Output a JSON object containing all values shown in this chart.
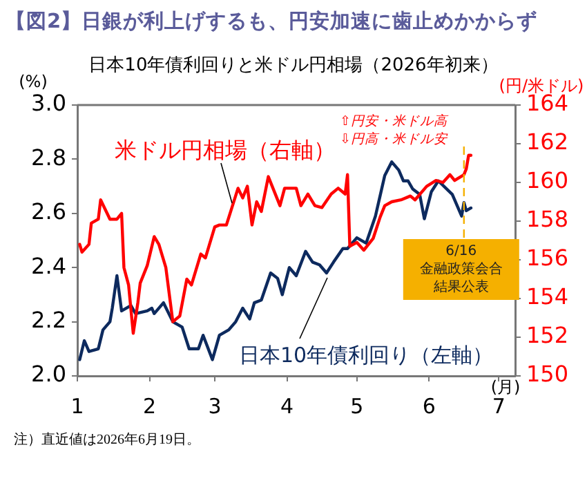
{
  "chart_data": {
    "type": "line",
    "title": "【図2】日銀が利上げするも、円安加速に歯止めかからず",
    "subtitle": "日本10年債利回りと米ドル円相場（2026年初来）",
    "xlabel": "(月)",
    "ylabel": "(%)",
    "y2label": "(円/米ドル)",
    "xlim": [
      "2026-01-01",
      "2026-07-08"
    ],
    "xticks": [
      {
        "value": "2026-01-01",
        "label": "1"
      },
      {
        "value": "2026-02-01",
        "label": "2"
      },
      {
        "value": "2026-03-01",
        "label": "3"
      },
      {
        "value": "2026-04-01",
        "label": "4"
      },
      {
        "value": "2026-05-01",
        "label": "5"
      },
      {
        "value": "2026-06-01",
        "label": "6"
      },
      {
        "value": "2026-07-01",
        "label": "7"
      }
    ],
    "ylim": [
      2.0,
      3.0
    ],
    "yticks": [
      {
        "value": 2.0,
        "label": "2.0"
      },
      {
        "value": 2.2,
        "label": "2.2"
      },
      {
        "value": 2.4,
        "label": "2.4"
      },
      {
        "value": 2.6,
        "label": "2.6"
      },
      {
        "value": 2.8,
        "label": "2.8"
      },
      {
        "value": 3.0,
        "label": "3.0"
      }
    ],
    "y2lim": [
      150,
      164
    ],
    "y2ticks": [
      150,
      152,
      154,
      156,
      158,
      160,
      162,
      164
    ],
    "grid": false,
    "legend": false,
    "marker": "none",
    "line_style": "solid",
    "series": [
      {
        "name": "米ドル円相場（右軸）",
        "color": "#ff0000",
        "axis": "y2",
        "x": [
          "2026-01-02",
          "2026-01-03",
          "2026-01-06",
          "2026-01-07",
          "2026-01-10",
          "2026-01-11",
          "2026-01-13",
          "2026-01-15",
          "2026-01-18",
          "2026-01-20",
          "2026-01-21",
          "2026-01-23",
          "2026-01-25",
          "2026-01-27",
          "2026-01-28",
          "2026-01-31",
          "2026-02-03",
          "2026-02-05",
          "2026-02-08",
          "2026-02-11",
          "2026-02-14",
          "2026-02-17",
          "2026-02-19",
          "2026-02-23",
          "2026-02-25",
          "2026-03-01",
          "2026-03-03",
          "2026-03-06",
          "2026-03-11",
          "2026-03-13",
          "2026-03-15",
          "2026-03-17",
          "2026-03-19",
          "2026-03-21",
          "2026-03-24",
          "2026-03-29",
          "2026-03-31",
          "2026-04-05",
          "2026-04-07",
          "2026-04-10",
          "2026-04-13",
          "2026-04-16",
          "2026-04-20",
          "2026-04-23",
          "2026-04-26",
          "2026-04-27",
          "2026-04-28",
          "2026-05-01",
          "2026-05-04",
          "2026-05-08",
          "2026-05-11",
          "2026-05-13",
          "2026-05-16",
          "2026-05-20",
          "2026-05-24",
          "2026-05-26",
          "2026-05-31",
          "2026-06-04",
          "2026-06-07",
          "2026-06-10",
          "2026-06-12",
          "2026-06-16",
          "2026-06-17",
          "2026-06-18",
          "2026-06-19"
        ],
        "values": [
          156.8,
          156.4,
          156.8,
          157.9,
          158.1,
          159.1,
          158.6,
          158.1,
          158.1,
          158.4,
          155.6,
          154.7,
          152.2,
          153.8,
          154.8,
          155.7,
          157.2,
          156.8,
          155.6,
          152.8,
          153.1,
          155.0,
          154.7,
          156.3,
          156.1,
          157.7,
          157.8,
          157.8,
          159.7,
          159.2,
          159.8,
          157.8,
          159.0,
          158.5,
          160.3,
          158.8,
          159.7,
          159.7,
          158.8,
          159.4,
          158.8,
          158.7,
          159.4,
          159.7,
          159.4,
          160.4,
          156.7,
          156.9,
          156.5,
          157.1,
          158.2,
          158.8,
          159.0,
          159.1,
          159.3,
          159.1,
          159.8,
          160.1,
          160.0,
          160.4,
          160.1,
          160.4,
          160.7,
          161.4,
          161.4
        ]
      },
      {
        "name": "日本10年債利回り（左軸）",
        "color": "#0d2a5e",
        "axis": "y",
        "x": [
          "2026-01-02",
          "2026-01-04",
          "2026-01-06",
          "2026-01-10",
          "2026-01-12",
          "2026-01-15",
          "2026-01-16",
          "2026-01-18",
          "2026-01-20",
          "2026-01-24",
          "2026-01-26",
          "2026-01-31",
          "2026-02-02",
          "2026-02-03",
          "2026-02-07",
          "2026-02-11",
          "2026-02-15",
          "2026-02-18",
          "2026-02-22",
          "2026-02-24",
          "2026-02-28",
          "2026-03-03",
          "2026-03-07",
          "2026-03-10",
          "2026-03-13",
          "2026-03-16",
          "2026-03-18",
          "2026-03-21",
          "2026-03-25",
          "2026-03-28",
          "2026-03-30",
          "2026-04-02",
          "2026-04-05",
          "2026-04-09",
          "2026-04-12",
          "2026-04-15",
          "2026-04-18",
          "2026-04-21",
          "2026-04-25",
          "2026-04-27",
          "2026-05-01",
          "2026-05-05",
          "2026-05-09",
          "2026-05-13",
          "2026-05-16",
          "2026-05-19",
          "2026-05-21",
          "2026-05-23",
          "2026-05-25",
          "2026-05-28",
          "2026-05-30",
          "2026-06-02",
          "2026-06-05",
          "2026-06-11",
          "2026-06-15",
          "2026-06-16",
          "2026-06-17",
          "2026-06-19"
        ],
        "values": [
          2.06,
          2.13,
          2.09,
          2.1,
          2.17,
          2.2,
          2.25,
          2.37,
          2.24,
          2.26,
          2.23,
          2.24,
          2.25,
          2.23,
          2.27,
          2.2,
          2.18,
          2.1,
          2.1,
          2.15,
          2.06,
          2.15,
          2.17,
          2.2,
          2.25,
          2.21,
          2.27,
          2.28,
          2.38,
          2.36,
          2.3,
          2.4,
          2.37,
          2.46,
          2.42,
          2.41,
          2.38,
          2.42,
          2.47,
          2.47,
          2.51,
          2.49,
          2.59,
          2.74,
          2.79,
          2.76,
          2.72,
          2.72,
          2.69,
          2.67,
          2.58,
          2.68,
          2.72,
          2.67,
          2.59,
          2.64,
          2.61,
          2.62
        ]
      }
    ],
    "ref_lines": [
      {
        "axis": "x",
        "value": "2026-06-16",
        "label": "6/16\n金融政策会合結果公表",
        "color": "#f5b000",
        "line_style": "dashed"
      }
    ],
    "annotations": [
      "⇧円安・米ドル高",
      "⇩円高・米ドル安",
      "注）直近値は2026年6月19日。"
    ]
  }
}
